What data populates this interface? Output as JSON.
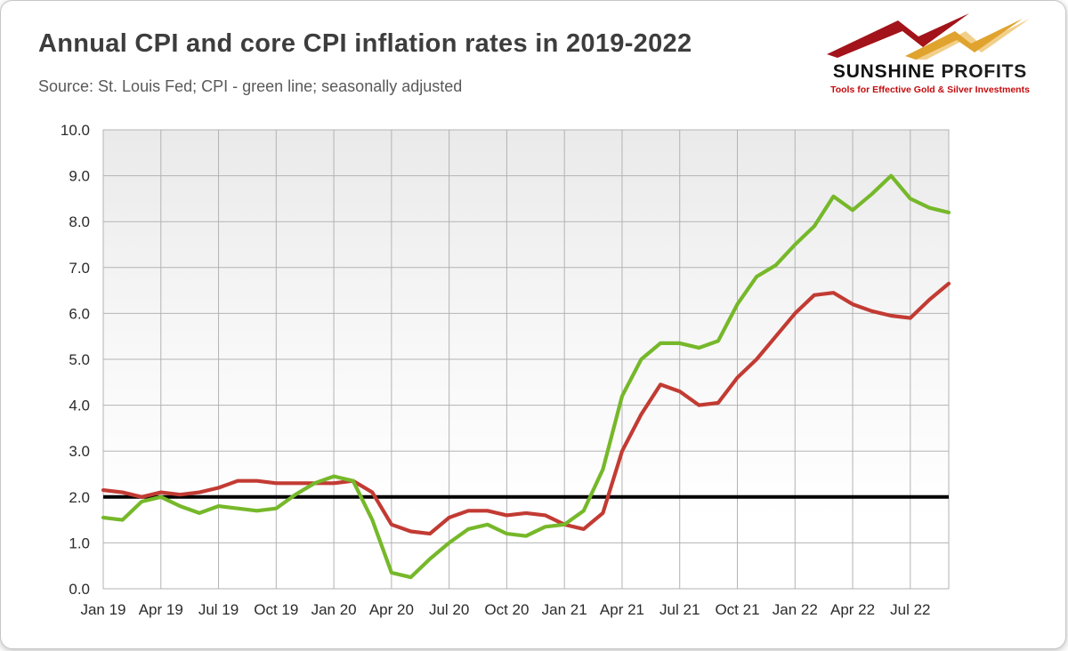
{
  "logo": {
    "name_bold": "SUNSHINE",
    "name_rest": " PROFITS",
    "tagline": "Tools for Effective Gold & Silver Investments",
    "bolt_dark_red": "#a3131a",
    "bolt_gold": "#e0a32e",
    "bolt_light_gold": "#f2cf8a"
  },
  "chart_data": {
    "type": "line",
    "title": "Annual CPI and core CPI inflation rates in 2019-2022",
    "subtitle": "Source: St. Louis Fed; CPI - green line; seasonally adjusted",
    "x_tick_labels": [
      "Jan 19",
      "Apr 19",
      "Jul 19",
      "Oct 19",
      "Jan 20",
      "Apr 20",
      "Jul 20",
      "Oct 20",
      "Jan 21",
      "Apr 21",
      "Jul 21",
      "Oct 21",
      "Jan 22",
      "Apr 22",
      "Jul 22"
    ],
    "tick_every": 3,
    "points_monthly_from": "Jan 2019",
    "points_monthly_to": "Sep 2022",
    "ylim": [
      0,
      10
    ],
    "ytick_step": 1,
    "grid": true,
    "grid_color": "#b3b3b3",
    "axis_text_color": "#2b2b2b",
    "reference_line": {
      "value": 2.0,
      "color": "#000000",
      "width": 4
    },
    "series": [
      {
        "id": "cpi-line",
        "name": "CPI",
        "color": "#76b82a",
        "values": [
          1.55,
          1.5,
          1.9,
          2.0,
          1.8,
          1.65,
          1.8,
          1.75,
          1.7,
          1.75,
          2.05,
          2.3,
          2.45,
          2.35,
          1.5,
          0.35,
          0.25,
          0.65,
          1.0,
          1.3,
          1.4,
          1.2,
          1.15,
          1.35,
          1.4,
          1.7,
          2.6,
          4.2,
          5.0,
          5.35,
          5.35,
          5.25,
          5.4,
          6.2,
          6.8,
          7.05,
          7.5,
          7.9,
          8.55,
          8.25,
          8.6,
          9.0,
          8.5,
          8.3,
          8.2
        ]
      },
      {
        "id": "core-cpi-line",
        "name": "Core CPI",
        "color": "#c23b33",
        "values": [
          2.15,
          2.1,
          2.0,
          2.1,
          2.05,
          2.1,
          2.2,
          2.35,
          2.35,
          2.3,
          2.3,
          2.3,
          2.3,
          2.35,
          2.1,
          1.4,
          1.25,
          1.2,
          1.55,
          1.7,
          1.7,
          1.6,
          1.65,
          1.6,
          1.4,
          1.3,
          1.65,
          3.0,
          3.8,
          4.45,
          4.3,
          4.0,
          4.05,
          4.6,
          5.0,
          5.5,
          6.0,
          6.4,
          6.45,
          6.2,
          6.05,
          5.95,
          5.9,
          6.3,
          6.65
        ]
      }
    ],
    "legend_position": "none"
  }
}
